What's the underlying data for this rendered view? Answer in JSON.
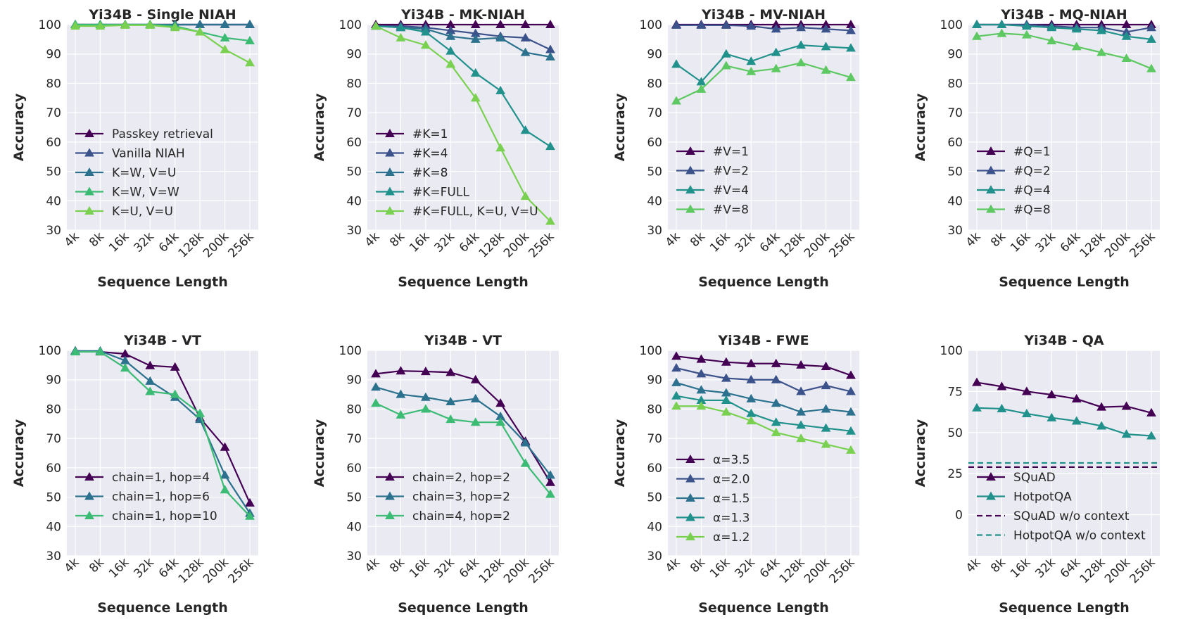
{
  "chart_data": [
    {
      "type": "line",
      "title": "Yi34B - Single NIAH",
      "xlabel": "Sequence Length",
      "ylabel": "Accuracy",
      "categories": [
        "4k",
        "8k",
        "16k",
        "32k",
        "64k",
        "128k",
        "200k",
        "256k"
      ],
      "ylim": [
        30,
        100
      ],
      "yticks": [
        30,
        40,
        50,
        60,
        70,
        80,
        90,
        100
      ],
      "grid": true,
      "legend": "center-left",
      "series": [
        {
          "name": "Passkey retrieval",
          "color": "#440154",
          "style": "solid",
          "values": [
            100,
            100,
            100,
            100,
            100,
            100,
            100,
            100
          ]
        },
        {
          "name": "Vanilla NIAH",
          "color": "#3b528b",
          "style": "solid",
          "values": [
            100,
            100,
            100,
            100,
            100,
            100,
            100,
            100
          ]
        },
        {
          "name": "K=W, V=U",
          "color": "#2c728e",
          "style": "solid",
          "values": [
            100,
            100,
            100,
            100,
            100,
            100,
            100,
            100
          ]
        },
        {
          "name": "K=W, V=W",
          "color": "#3cbb75",
          "style": "solid",
          "values": [
            100,
            100,
            100,
            100,
            99.5,
            97.5,
            95.5,
            94.5
          ]
        },
        {
          "name": "K=U, V=U",
          "color": "#7ad151",
          "style": "solid",
          "values": [
            99.5,
            99.5,
            99.8,
            99.8,
            99,
            97.5,
            91.5,
            87
          ]
        }
      ]
    },
    {
      "type": "line",
      "title": "Yi34B - MK-NIAH",
      "xlabel": "Sequence Length",
      "ylabel": "Accuracy",
      "categories": [
        "4k",
        "8k",
        "16k",
        "32k",
        "64k",
        "128k",
        "200k",
        "256k"
      ],
      "ylim": [
        30,
        100
      ],
      "yticks": [
        30,
        40,
        50,
        60,
        70,
        80,
        90,
        100
      ],
      "grid": true,
      "legend": "lower-left",
      "series": [
        {
          "name": "#K=1",
          "color": "#440154",
          "style": "solid",
          "values": [
            100,
            100,
            100,
            100,
            100,
            100,
            100,
            100
          ]
        },
        {
          "name": "#K=4",
          "color": "#3b528b",
          "style": "solid",
          "values": [
            99.5,
            99.5,
            99,
            98,
            97,
            96,
            95.5,
            91.5
          ]
        },
        {
          "name": "#K=8",
          "color": "#2c728e",
          "style": "solid",
          "values": [
            99.5,
            99,
            98.5,
            96,
            95,
            95.5,
            90.5,
            89
          ]
        },
        {
          "name": "#K=FULL",
          "color": "#21918c",
          "style": "solid",
          "values": [
            99.5,
            99,
            97.5,
            91,
            83.5,
            77.5,
            64,
            58.5
          ]
        },
        {
          "name": "#K=FULL, K=U, V=U",
          "color": "#7ad151",
          "style": "solid",
          "values": [
            99.5,
            95.5,
            93,
            86.5,
            75,
            58,
            41.5,
            33
          ]
        }
      ]
    },
    {
      "type": "line",
      "title": "Yi34B - MV-NIAH",
      "xlabel": "Sequence Length",
      "ylabel": "Accuracy",
      "categories": [
        "4k",
        "8k",
        "16k",
        "32k",
        "64k",
        "128k",
        "200k",
        "256k"
      ],
      "ylim": [
        30,
        100
      ],
      "yticks": [
        30,
        40,
        50,
        60,
        70,
        80,
        90,
        100
      ],
      "grid": true,
      "legend": "lower-left",
      "series": [
        {
          "name": "#V=1",
          "color": "#440154",
          "style": "solid",
          "values": [
            100,
            100,
            100,
            100,
            100,
            100,
            100,
            100
          ]
        },
        {
          "name": "#V=2",
          "color": "#3b528b",
          "style": "solid",
          "values": [
            99.8,
            99.8,
            99.8,
            99.5,
            98.5,
            99,
            98.5,
            98
          ]
        },
        {
          "name": "#V=4",
          "color": "#21918c",
          "style": "solid",
          "values": [
            86.5,
            80.5,
            90,
            87.5,
            90.5,
            93,
            92.5,
            92
          ]
        },
        {
          "name": "#V=8",
          "color": "#5ec962",
          "style": "solid",
          "values": [
            74,
            78,
            86,
            84,
            85,
            87,
            84.5,
            82
          ]
        }
      ]
    },
    {
      "type": "line",
      "title": "Yi34B - MQ-NIAH",
      "xlabel": "Sequence Length",
      "ylabel": "Accuracy",
      "categories": [
        "4k",
        "8k",
        "16k",
        "32k",
        "64k",
        "128k",
        "200k",
        "256k"
      ],
      "ylim": [
        30,
        100
      ],
      "yticks": [
        30,
        40,
        50,
        60,
        70,
        80,
        90,
        100
      ],
      "grid": true,
      "legend": "lower-left",
      "series": [
        {
          "name": "#Q=1",
          "color": "#440154",
          "style": "solid",
          "values": [
            100,
            100,
            100,
            100,
            100,
            100,
            100,
            100
          ]
        },
        {
          "name": "#Q=2",
          "color": "#3b528b",
          "style": "solid",
          "values": [
            100,
            100,
            100,
            99.5,
            99,
            99,
            97.5,
            99
          ]
        },
        {
          "name": "#Q=4",
          "color": "#21918c",
          "style": "solid",
          "values": [
            100,
            100,
            99.5,
            99,
            98.5,
            98,
            96,
            95
          ]
        },
        {
          "name": "#Q=8",
          "color": "#5ec962",
          "style": "solid",
          "values": [
            96,
            97,
            96.5,
            94.5,
            92.5,
            90.5,
            88.5,
            85
          ]
        }
      ]
    },
    {
      "type": "line",
      "title": "Yi34B - VT",
      "xlabel": "Sequence Length",
      "ylabel": "Accuracy",
      "categories": [
        "4k",
        "8k",
        "16k",
        "32k",
        "64k",
        "128k",
        "200k",
        "256k"
      ],
      "ylim": [
        30,
        100
      ],
      "yticks": [
        30,
        40,
        50,
        60,
        70,
        80,
        90,
        100
      ],
      "grid": true,
      "legend": "lower-left",
      "series": [
        {
          "name": "chain=1, hop=4",
          "color": "#440154",
          "style": "solid",
          "values": [
            99.8,
            99.5,
            98.8,
            94.8,
            94.3,
            77,
            67,
            48
          ]
        },
        {
          "name": "chain=1, hop=6",
          "color": "#2c728e",
          "style": "solid",
          "values": [
            99.8,
            99.8,
            96.5,
            89.5,
            84,
            76.5,
            57.5,
            44.5
          ]
        },
        {
          "name": "chain=1, hop=10",
          "color": "#3cbb75",
          "style": "solid",
          "values": [
            99.5,
            99.5,
            94,
            86,
            85,
            78.5,
            52.5,
            43.5
          ]
        }
      ]
    },
    {
      "type": "line",
      "title": "Yi34B - VT",
      "xlabel": "Sequence Length",
      "ylabel": "Accuracy",
      "categories": [
        "4k",
        "8k",
        "16k",
        "32k",
        "64k",
        "128k",
        "200k",
        "256k"
      ],
      "ylim": [
        30,
        100
      ],
      "yticks": [
        30,
        40,
        50,
        60,
        70,
        80,
        90,
        100
      ],
      "grid": true,
      "legend": "lower-left",
      "series": [
        {
          "name": "chain=2, hop=2",
          "color": "#440154",
          "style": "solid",
          "values": [
            92,
            93,
            92.8,
            92.5,
            90,
            82,
            69,
            55
          ]
        },
        {
          "name": "chain=3, hop=2",
          "color": "#2c728e",
          "style": "solid",
          "values": [
            87.5,
            85,
            84,
            82.5,
            83.5,
            77.5,
            68.5,
            57.5
          ]
        },
        {
          "name": "chain=4, hop=2",
          "color": "#3cbb75",
          "style": "solid",
          "values": [
            82,
            78,
            80,
            76.5,
            75.5,
            75.5,
            61.5,
            51
          ]
        }
      ]
    },
    {
      "type": "line",
      "title": "Yi34B - FWE",
      "xlabel": "Sequence Length",
      "ylabel": "Accuracy",
      "categories": [
        "4k",
        "8k",
        "16k",
        "32k",
        "64k",
        "128k",
        "200k",
        "256k"
      ],
      "ylim": [
        30,
        100
      ],
      "yticks": [
        30,
        40,
        50,
        60,
        70,
        80,
        90,
        100
      ],
      "grid": true,
      "legend": "lower-left",
      "series": [
        {
          "name": "α=3.5",
          "color": "#440154",
          "style": "solid",
          "values": [
            98,
            97,
            96,
            95.5,
            95.5,
            95,
            94.5,
            91.5
          ]
        },
        {
          "name": "α=2.0",
          "color": "#3b528b",
          "style": "solid",
          "values": [
            94,
            92,
            90.5,
            90,
            90,
            86,
            88,
            86
          ]
        },
        {
          "name": "α=1.5",
          "color": "#2c728e",
          "style": "solid",
          "values": [
            89,
            86.5,
            85.5,
            83.5,
            82,
            79,
            80,
            79
          ]
        },
        {
          "name": "α=1.3",
          "color": "#21918c",
          "style": "solid",
          "values": [
            84.5,
            83,
            83,
            78.5,
            75.5,
            74.5,
            73.5,
            72.5
          ]
        },
        {
          "name": "α=1.2",
          "color": "#7ad151",
          "style": "solid",
          "values": [
            81,
            81,
            79,
            76,
            72,
            70,
            68,
            66
          ]
        }
      ]
    },
    {
      "type": "line",
      "title": "Yi34B - QA",
      "xlabel": "Sequence Length",
      "ylabel": "Accuracy",
      "categories": [
        "4k",
        "8k",
        "16k",
        "32k",
        "64k",
        "128k",
        "200k",
        "256k"
      ],
      "ylim": [
        -25,
        100
      ],
      "yticks": [
        0,
        25,
        50,
        75,
        100
      ],
      "grid": true,
      "legend": "lower-left",
      "series": [
        {
          "name": "SQuAD",
          "color": "#440154",
          "style": "solid",
          "values": [
            80.5,
            78,
            75,
            73,
            70.5,
            65.5,
            66,
            62
          ]
        },
        {
          "name": "HotpotQA",
          "color": "#21918c",
          "style": "solid",
          "values": [
            65,
            64.5,
            61.5,
            59,
            57,
            54,
            49,
            48
          ]
        },
        {
          "name": "SQuAD w/o context",
          "color": "#440154",
          "style": "dashed",
          "values": [
            29,
            29,
            29,
            29,
            29,
            29,
            29,
            29
          ]
        },
        {
          "name": "HotpotQA w/o context",
          "color": "#21918c",
          "style": "dashed",
          "values": [
            31.5,
            31.5,
            31.5,
            31.5,
            31.5,
            31.5,
            31.5,
            31.5
          ]
        }
      ]
    }
  ]
}
